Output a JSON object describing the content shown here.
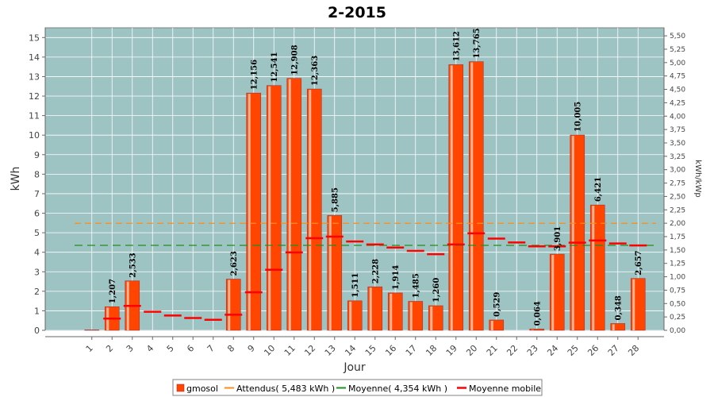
{
  "chart_data": {
    "type": "bar",
    "title": "2-2015",
    "xlabel": "Jour",
    "ylabel": "kWh",
    "ylabel_right": "kWh/kWp",
    "ylim": [
      0,
      15.5
    ],
    "ylim_right": [
      0,
      5.65
    ],
    "grid": true,
    "legend_position": "bottom",
    "categories": [
      "1",
      "2",
      "3",
      "4",
      "5",
      "6",
      "7",
      "8",
      "9",
      "10",
      "11",
      "12",
      "13",
      "14",
      "15",
      "16",
      "17",
      "18",
      "19",
      "20",
      "21",
      "22",
      "23",
      "24",
      "25",
      "26",
      "27",
      "28"
    ],
    "series": [
      {
        "name": "gmosol",
        "type": "bar",
        "color": "#ff4500",
        "values": [
          0.02,
          1.207,
          2.533,
          0,
          0,
          0,
          0,
          2.623,
          12.156,
          12.541,
          12.908,
          12.363,
          5.885,
          1.511,
          2.228,
          1.914,
          1.485,
          1.26,
          13.612,
          13.765,
          0.529,
          0,
          0.064,
          3.901,
          10.005,
          6.421,
          0.348,
          2.657
        ],
        "labels": [
          "",
          "1,207",
          "2,533",
          "",
          "",
          "",
          "",
          "2,623",
          "12,156",
          "12,541",
          "12,908",
          "12,363",
          "5,885",
          "1,511",
          "2,228",
          "1,914",
          "1,485",
          "1,260",
          "13,612",
          "13,765",
          "0,529",
          "",
          "0,064",
          "3,901",
          "10,005",
          "6,421",
          "0,348",
          "2,657"
        ]
      },
      {
        "name": "Attendus( 5,483 kWh )",
        "type": "dashed",
        "color": "#ff8c1a",
        "value": 5.483
      },
      {
        "name": "Moyenne( 4,354 kWh )",
        "type": "dashed",
        "color": "#1f8f1f",
        "value": 4.354
      },
      {
        "name": "Moyenne mobile",
        "type": "step",
        "color": "#ff0000",
        "values": [
          null,
          0.6,
          1.25,
          0.95,
          0.76,
          0.63,
          0.54,
          0.8,
          1.95,
          3.1,
          3.99,
          4.72,
          4.8,
          4.55,
          4.4,
          4.24,
          4.07,
          3.9,
          4.4,
          4.97,
          4.7,
          4.5,
          4.3,
          4.3,
          4.49,
          4.6,
          4.45,
          4.35
        ]
      }
    ]
  }
}
